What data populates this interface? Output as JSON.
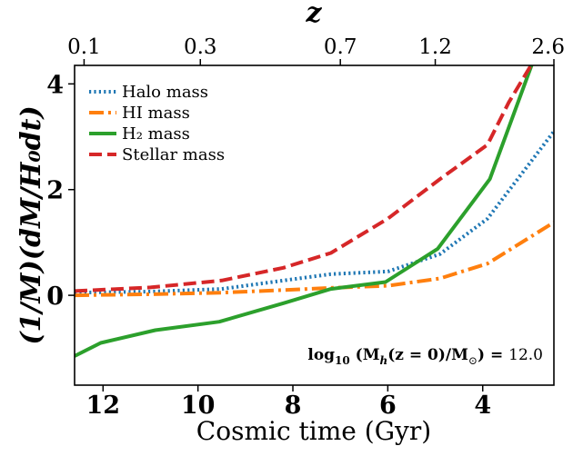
{
  "chart_data": {
    "type": "line",
    "xlabel": "Cosmic time (Gyr)",
    "ylabel": "(1/M)(dM/H₀dt)",
    "top_axis_label": "z",
    "xlim": [
      12.6,
      2.5
    ],
    "ylim": [
      -1.7,
      4.35
    ],
    "x_ticks": [
      12,
      10,
      8,
      6,
      4
    ],
    "y_ticks": [
      0,
      2,
      4
    ],
    "top_ticks": [
      {
        "label": "0.1",
        "t": 12.4
      },
      {
        "label": "0.3",
        "t": 9.95
      },
      {
        "label": "0.7",
        "t": 7.0
      },
      {
        "label": "1.2",
        "t": 5.0
      },
      {
        "label": "2.6",
        "t": 2.5
      }
    ],
    "grid": false,
    "legend_position": "top-left",
    "annotation": {
      "prefix": "log",
      "sub": "10",
      "body": " (M",
      "h_sub": "h",
      "mid": "(z = 0)/M",
      "sun": "⊙",
      "close": ") = ",
      "value": "12.0"
    },
    "series": [
      {
        "name": "Halo mass",
        "color": "#1f77b4",
        "dash": "dotted",
        "x": [
          12.6,
          11.0,
          9.5,
          8.2,
          7.2,
          6.0,
          4.9,
          3.9,
          2.5
        ],
        "y": [
          0.05,
          0.07,
          0.12,
          0.28,
          0.4,
          0.45,
          0.78,
          1.45,
          3.1
        ]
      },
      {
        "name": "HI mass",
        "color": "#ff7f0e",
        "dash": "dashdot",
        "x": [
          12.6,
          11.0,
          9.5,
          8.2,
          7.2,
          6.0,
          4.9,
          3.9,
          2.5
        ],
        "y": [
          0.0,
          0.02,
          0.05,
          0.1,
          0.14,
          0.18,
          0.32,
          0.6,
          1.38
        ]
      },
      {
        "name": "H₂ mass",
        "color": "#2ca02c",
        "dash": "solid",
        "x": [
          12.6,
          12.05,
          10.9,
          9.55,
          8.2,
          7.2,
          6.05,
          4.95,
          3.85,
          2.95
        ],
        "y": [
          -1.15,
          -0.9,
          -0.66,
          -0.5,
          -0.15,
          0.12,
          0.25,
          0.88,
          2.2,
          4.4
        ]
      },
      {
        "name": "Stellar mass",
        "color": "#d62728",
        "dash": "dashed",
        "x": [
          12.6,
          11.0,
          9.5,
          8.2,
          7.2,
          6.0,
          4.9,
          3.9,
          3.45,
          2.95
        ],
        "y": [
          0.08,
          0.15,
          0.28,
          0.52,
          0.8,
          1.45,
          2.2,
          2.85,
          3.65,
          4.4
        ]
      }
    ]
  }
}
